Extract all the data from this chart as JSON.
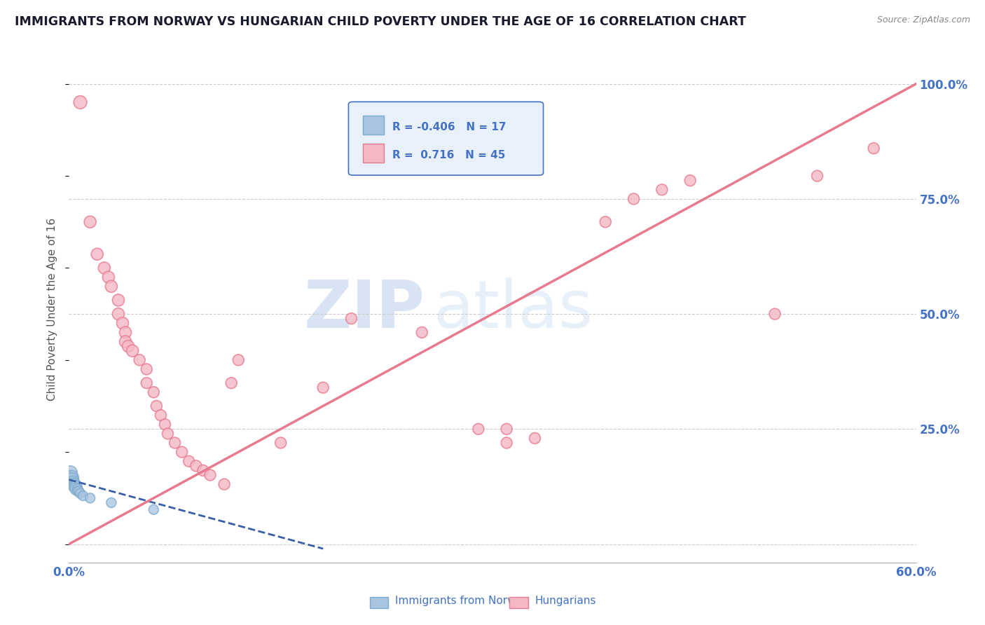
{
  "title": "IMMIGRANTS FROM NORWAY VS HUNGARIAN CHILD POVERTY UNDER THE AGE OF 16 CORRELATION CHART",
  "source": "Source: ZipAtlas.com",
  "ylabel": "Child Poverty Under the Age of 16",
  "xlim": [
    0.0,
    0.6
  ],
  "ylim": [
    -0.04,
    1.06
  ],
  "xticks": [
    0.0,
    0.1,
    0.2,
    0.3,
    0.4,
    0.5,
    0.6
  ],
  "xticklabels": [
    "0.0%",
    "",
    "",
    "",
    "",
    "",
    "60.0%"
  ],
  "ytick_positions": [
    0.0,
    0.25,
    0.5,
    0.75,
    1.0
  ],
  "ytick_labels": [
    "",
    "25.0%",
    "50.0%",
    "75.0%",
    "100.0%"
  ],
  "norway_R": "-0.406",
  "norway_N": "17",
  "hungarian_R": "0.716",
  "hungarian_N": "45",
  "norway_scatter": [
    [
      0.001,
      0.155
    ],
    [
      0.002,
      0.145
    ],
    [
      0.002,
      0.14
    ],
    [
      0.003,
      0.135
    ],
    [
      0.003,
      0.13
    ],
    [
      0.004,
      0.13
    ],
    [
      0.004,
      0.125
    ],
    [
      0.005,
      0.125
    ],
    [
      0.005,
      0.12
    ],
    [
      0.006,
      0.12
    ],
    [
      0.006,
      0.115
    ],
    [
      0.007,
      0.115
    ],
    [
      0.008,
      0.11
    ],
    [
      0.01,
      0.105
    ],
    [
      0.015,
      0.1
    ],
    [
      0.03,
      0.09
    ],
    [
      0.06,
      0.075
    ]
  ],
  "norwegian_trendline_x": [
    0.0,
    0.18
  ],
  "norwegian_trendline_y": [
    0.14,
    -0.01
  ],
  "hungarian_scatter": [
    [
      0.008,
      0.96
    ],
    [
      0.015,
      0.7
    ],
    [
      0.02,
      0.63
    ],
    [
      0.025,
      0.6
    ],
    [
      0.028,
      0.58
    ],
    [
      0.03,
      0.56
    ],
    [
      0.035,
      0.53
    ],
    [
      0.035,
      0.5
    ],
    [
      0.038,
      0.48
    ],
    [
      0.04,
      0.46
    ],
    [
      0.04,
      0.44
    ],
    [
      0.042,
      0.43
    ],
    [
      0.045,
      0.42
    ],
    [
      0.05,
      0.4
    ],
    [
      0.055,
      0.38
    ],
    [
      0.055,
      0.35
    ],
    [
      0.06,
      0.33
    ],
    [
      0.062,
      0.3
    ],
    [
      0.065,
      0.28
    ],
    [
      0.068,
      0.26
    ],
    [
      0.07,
      0.24
    ],
    [
      0.075,
      0.22
    ],
    [
      0.08,
      0.2
    ],
    [
      0.085,
      0.18
    ],
    [
      0.09,
      0.17
    ],
    [
      0.095,
      0.16
    ],
    [
      0.1,
      0.15
    ],
    [
      0.11,
      0.13
    ],
    [
      0.115,
      0.35
    ],
    [
      0.12,
      0.4
    ],
    [
      0.15,
      0.22
    ],
    [
      0.18,
      0.34
    ],
    [
      0.2,
      0.49
    ],
    [
      0.25,
      0.46
    ],
    [
      0.29,
      0.25
    ],
    [
      0.31,
      0.25
    ],
    [
      0.31,
      0.22
    ],
    [
      0.33,
      0.23
    ],
    [
      0.38,
      0.7
    ],
    [
      0.4,
      0.75
    ],
    [
      0.42,
      0.77
    ],
    [
      0.44,
      0.79
    ],
    [
      0.5,
      0.5
    ],
    [
      0.53,
      0.8
    ],
    [
      0.57,
      0.86
    ]
  ],
  "hungarian_trendline_x": [
    0.0,
    0.6
  ],
  "hungarian_trendline_y": [
    0.0,
    1.0
  ],
  "norway_line_color": "#3a5fa8",
  "norwegian_line_style": "--",
  "hungarian_line_color": "#e87a90",
  "hungarian_line_style": "-",
  "scatter_norway_color": "#a8c4e0",
  "scatter_hungarian_color": "#f4b8c5",
  "scatter_norway_edge": "#7aabcf",
  "scatter_hungarian_edge": "#e87a90",
  "grid_color": "#cccccc",
  "grid_style": "--",
  "background_color": "#ffffff",
  "title_color": "#1a1a2e",
  "axis_label_color": "#4472c4",
  "watermark_text": "ZIPatlas",
  "watermark_color": "#d0dff0",
  "legend_box_color": "#e8f0fa",
  "legend_border_color": "#4472c4"
}
